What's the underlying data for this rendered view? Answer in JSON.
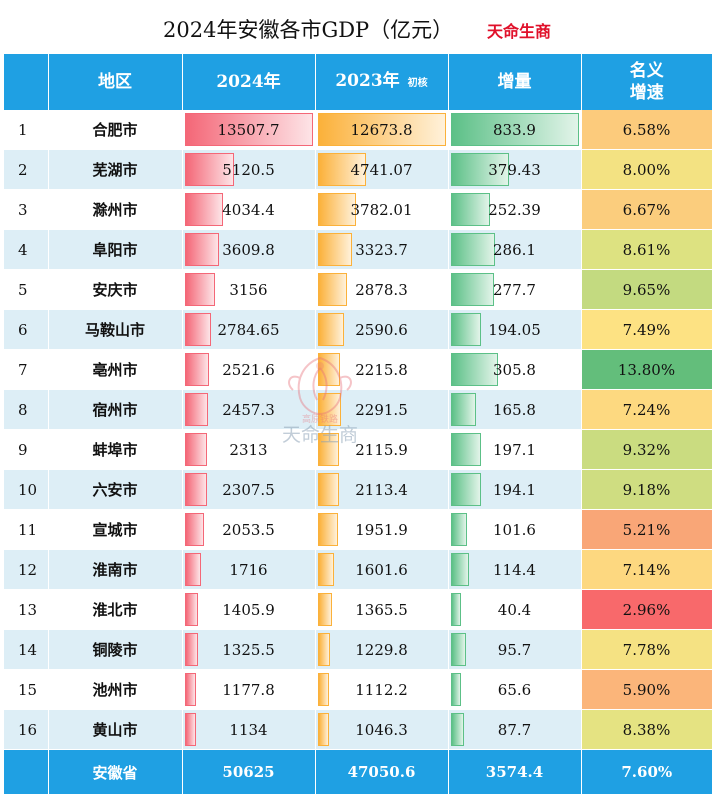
{
  "title": "2024年安徽各市GDP（亿元）",
  "brand": "天命生商",
  "headers": {
    "region": "地区",
    "y2024": "2024年",
    "y2023": "2023年",
    "y2023_sub": "初核",
    "increase": "增量",
    "growth_line1": "名义",
    "growth_line2": "增速"
  },
  "rows": [
    {
      "rank": "1",
      "region": "合肥市",
      "gdp2024": "13507.7",
      "gdp2023": "12673.8",
      "increase": "833.9",
      "growth": "6.58%",
      "growth_color": "#fccb7c"
    },
    {
      "rank": "2",
      "region": "芜湖市",
      "gdp2024": "5120.5",
      "gdp2023": "4741.07",
      "increase": "379.43",
      "growth": "8.00%",
      "growth_color": "#f3e282"
    },
    {
      "rank": "3",
      "region": "滁州市",
      "gdp2024": "4034.4",
      "gdp2023": "3782.01",
      "increase": "252.39",
      "growth": "6.67%",
      "growth_color": "#fbcd7d"
    },
    {
      "rank": "4",
      "region": "阜阳市",
      "gdp2024": "3609.8",
      "gdp2023": "3323.7",
      "increase": "286.1",
      "growth": "8.61%",
      "growth_color": "#dde281"
    },
    {
      "rank": "5",
      "region": "安庆市",
      "gdp2024": "3156",
      "gdp2023": "2878.3",
      "increase": "277.7",
      "growth": "9.65%",
      "growth_color": "#c3da80"
    },
    {
      "rank": "6",
      "region": "马鞍山市",
      "gdp2024": "2784.65",
      "gdp2023": "2590.6",
      "increase": "194.05",
      "growth": "7.49%",
      "growth_color": "#fde283"
    },
    {
      "rank": "7",
      "region": "亳州市",
      "gdp2024": "2521.6",
      "gdp2023": "2215.8",
      "increase": "305.8",
      "growth": "13.80%",
      "growth_color": "#63be7b"
    },
    {
      "rank": "8",
      "region": "宿州市",
      "gdp2024": "2457.3",
      "gdp2023": "2291.5",
      "increase": "165.8",
      "growth": "7.24%",
      "growth_color": "#fdd980"
    },
    {
      "rank": "9",
      "region": "蚌埠市",
      "gdp2024": "2313",
      "gdp2023": "2115.9",
      "increase": "197.1",
      "growth": "9.32%",
      "growth_color": "#cadc80"
    },
    {
      "rank": "10",
      "region": "六安市",
      "gdp2024": "2307.5",
      "gdp2023": "2113.4",
      "increase": "194.1",
      "growth": "9.18%",
      "growth_color": "#cfdd81"
    },
    {
      "rank": "11",
      "region": "宣城市",
      "gdp2024": "2053.5",
      "gdp2023": "1951.9",
      "increase": "101.6",
      "growth": "5.21%",
      "growth_color": "#f9a677"
    },
    {
      "rank": "12",
      "region": "淮南市",
      "gdp2024": "1716",
      "gdp2023": "1601.6",
      "increase": "114.4",
      "growth": "7.14%",
      "growth_color": "#fdd880"
    },
    {
      "rank": "13",
      "region": "淮北市",
      "gdp2024": "1405.9",
      "gdp2023": "1365.5",
      "increase": "40.4",
      "growth": "2.96%",
      "growth_color": "#f8696b"
    },
    {
      "rank": "14",
      "region": "铜陵市",
      "gdp2024": "1325.5",
      "gdp2023": "1229.8",
      "increase": "95.7",
      "growth": "7.78%",
      "growth_color": "#f5e283"
    },
    {
      "rank": "15",
      "region": "池州市",
      "gdp2024": "1177.8",
      "gdp2023": "1112.2",
      "increase": "65.6",
      "growth": "5.90%",
      "growth_color": "#fbb57a"
    },
    {
      "rank": "16",
      "region": "黄山市",
      "gdp2024": "1134",
      "gdp2023": "1046.3",
      "increase": "87.7",
      "growth": "8.38%",
      "growth_color": "#e5e382"
    }
  ],
  "total": {
    "region": "安徽省",
    "gdp2024": "50625",
    "gdp2023": "47050.6",
    "increase": "3574.4",
    "growth": "7.60%"
  },
  "watermark": {
    "icon": "phoenix-logo-icon",
    "text": "天命生商"
  },
  "colors": {
    "header_bg": "#1fa0e3",
    "bar_2024": "#f46777",
    "bar_2023": "#fbb13a",
    "bar_increase": "#5cc087",
    "brand": "#e0102a"
  }
}
